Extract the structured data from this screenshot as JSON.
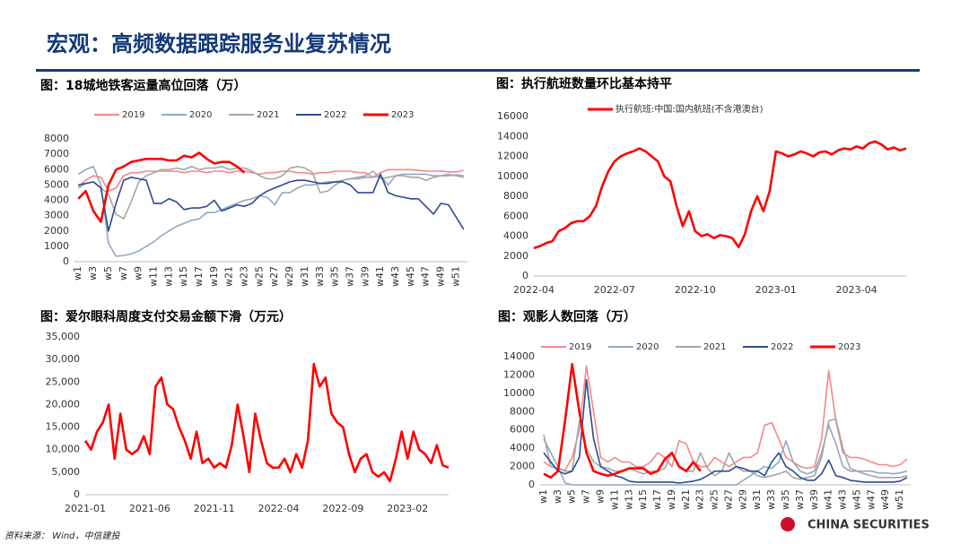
{
  "header": {
    "title": "宏观：高频数据跟踪服务业复苏情况",
    "source": "资料来源： Wind，中信建投",
    "logo": "CHINA SECURITIES"
  },
  "chart_data": [
    {
      "type": "line",
      "title": "图：18城地铁客运量高位回落（万）",
      "categories": [
        "w1",
        null,
        "w3",
        null,
        "w5",
        null,
        "w7",
        null,
        "w9",
        null,
        "w11",
        null,
        "w13",
        null,
        "w15",
        null,
        "w17",
        null,
        "w19",
        null,
        "w21",
        null,
        "w23",
        null,
        "w25",
        null,
        "w27",
        null,
        "w29",
        null,
        "w31",
        null,
        "w33",
        null,
        "w35",
        null,
        "w37",
        null,
        "w39",
        null,
        "w41",
        null,
        "w43",
        null,
        "w45",
        null,
        "w47",
        null,
        "w49",
        null,
        "w51",
        null
      ],
      "ylim": [
        0,
        8000
      ],
      "yticks": [
        0,
        1000,
        2000,
        3000,
        4000,
        5000,
        6000,
        7000,
        8000
      ],
      "grid": false,
      "legend": "top",
      "series": [
        {
          "name": "2019",
          "color": "#f4878a",
          "values": [
            4900,
            5300,
            5600,
            5500,
            4600,
            4800,
            5600,
            5800,
            5800,
            5900,
            5900,
            5900,
            5900,
            5900,
            5800,
            5900,
            5900,
            5800,
            5900,
            5900,
            5800,
            5900,
            5900,
            5800,
            5700,
            5800,
            5800,
            5900,
            5900,
            5800,
            5800,
            5700,
            5800,
            5800,
            5900,
            5900,
            5900,
            5800,
            5800,
            5500,
            5800,
            6000,
            6000,
            6000,
            6000,
            5950,
            5900,
            5900,
            5900,
            5850,
            5850,
            5950
          ]
        },
        {
          "name": "2020",
          "color": "#8fa9c1",
          "values": [
            5700,
            6000,
            6200,
            5000,
            1200,
            350,
            400,
            500,
            700,
            1000,
            1300,
            1700,
            2000,
            2300,
            2500,
            2700,
            2800,
            3200,
            3200,
            3400,
            3600,
            3800,
            4000,
            4100,
            4300,
            4200,
            3700,
            4500,
            4500,
            4800,
            5000,
            5000,
            5100,
            5200,
            5200,
            5300,
            5400,
            5400,
            5500,
            5500,
            5600,
            5000,
            5600,
            5700,
            5700,
            5700,
            5700,
            5600,
            5600,
            5600,
            5650,
            5600
          ]
        },
        {
          "name": "2021",
          "color": "#a6a6a6",
          "values": [
            4800,
            5100,
            5200,
            4800,
            4400,
            3100,
            2800,
            3900,
            5200,
            5600,
            5800,
            6000,
            6000,
            6100,
            6000,
            6200,
            6000,
            6100,
            6100,
            6200,
            6000,
            6100,
            6100,
            5900,
            5600,
            5400,
            5400,
            5600,
            6100,
            6200,
            6100,
            5800,
            4500,
            4600,
            5000,
            5300,
            5400,
            5500,
            5600,
            5900,
            5400,
            5500,
            5600,
            5600,
            5500,
            5500,
            5300,
            5500,
            5600,
            5700,
            5600,
            5500
          ]
        },
        {
          "name": "2022",
          "color": "#2d4b8e",
          "values": [
            5000,
            5100,
            5200,
            4800,
            2000,
            3800,
            5300,
            5500,
            5400,
            5300,
            3800,
            3800,
            4100,
            3900,
            3400,
            3500,
            3500,
            3600,
            4000,
            3300,
            3500,
            3700,
            3600,
            3800,
            4300,
            4600,
            4800,
            5000,
            5200,
            5300,
            5300,
            5200,
            5100,
            5100,
            5200,
            5200,
            5000,
            4500,
            4500,
            4500,
            5700,
            4500,
            4300,
            4200,
            4100,
            4100,
            3600,
            3100,
            3800,
            3700,
            2900,
            2100
          ]
        },
        {
          "name": "2023",
          "color": "#ff0000",
          "values": [
            4100,
            4600,
            3300,
            2600,
            5000,
            6000,
            6200,
            6500,
            6600,
            6700,
            6700,
            6700,
            6600,
            6600,
            6900,
            6800,
            7100,
            6700,
            6400,
            6500,
            6500,
            6200,
            5800,
            null,
            null,
            null,
            null,
            null,
            null,
            null,
            null,
            null,
            null,
            null,
            null,
            null,
            null,
            null,
            null,
            null,
            null,
            null,
            null,
            null,
            null,
            null,
            null,
            null,
            null,
            null,
            null,
            null
          ]
        }
      ]
    },
    {
      "type": "line",
      "title": "图：执行航班数量环比基本持平",
      "categories": [
        "2022-04",
        null,
        null,
        null,
        null,
        null,
        null,
        null,
        null,
        null,
        null,
        null,
        null,
        "2022-07",
        null,
        null,
        null,
        null,
        null,
        null,
        null,
        null,
        null,
        null,
        null,
        null,
        "2022-10",
        null,
        null,
        null,
        null,
        null,
        null,
        null,
        null,
        null,
        null,
        null,
        null,
        "2023-01",
        null,
        null,
        null,
        null,
        null,
        null,
        null,
        null,
        null,
        null,
        null,
        null,
        "2023-04",
        null,
        null,
        null,
        null,
        null,
        null,
        null,
        null
      ],
      "ylim": [
        0,
        16000
      ],
      "yticks": [
        0,
        2000,
        4000,
        6000,
        8000,
        10000,
        12000,
        14000,
        16000
      ],
      "grid": false,
      "legend": "top",
      "series": [
        {
          "name": "执行航班:中国:国内航班(不含港澳台)",
          "color": "#ff0000",
          "values": [
            2800,
            3000,
            3300,
            3500,
            4500,
            4800,
            5300,
            5500,
            5500,
            6000,
            7000,
            9000,
            10500,
            11500,
            12000,
            12300,
            12500,
            12800,
            12500,
            12000,
            11500,
            10000,
            9500,
            7000,
            5000,
            6500,
            4500,
            4000,
            4200,
            3800,
            4100,
            4000,
            3800,
            2900,
            4200,
            6500,
            8000,
            6500,
            8500,
            12500,
            12300,
            12000,
            12200,
            12500,
            12300,
            12000,
            12400,
            12500,
            12200,
            12600,
            12800,
            12700,
            13000,
            12800,
            13300,
            13500,
            13200,
            12700,
            12900,
            12600,
            12800
          ]
        }
      ]
    },
    {
      "type": "line",
      "title": "图：爱尔眼科周度支付交易金额下滑（万元）",
      "categories": [
        "2021-01",
        null,
        null,
        null,
        null,
        null,
        null,
        null,
        null,
        null,
        null,
        "2021-06",
        null,
        null,
        null,
        null,
        null,
        null,
        null,
        null,
        null,
        null,
        "2021-11",
        null,
        null,
        null,
        null,
        null,
        null,
        null,
        null,
        null,
        null,
        "2022-04",
        null,
        null,
        null,
        null,
        null,
        null,
        null,
        null,
        null,
        null,
        "2022-09",
        null,
        null,
        null,
        null,
        null,
        null,
        null,
        null,
        null,
        null,
        "2023-02",
        null,
        null,
        null,
        null,
        null,
        null,
        null
      ],
      "ylim": [
        0,
        35000
      ],
      "yticks": [
        0,
        {
          "value": 5000,
          "label": "5,000"
        },
        {
          "value": 10000,
          "label": "10,000"
        },
        {
          "value": 15000,
          "label": "15,000"
        },
        {
          "value": 20000,
          "label": "20,000"
        },
        {
          "value": 25000,
          "label": "25,000"
        },
        {
          "value": 30000,
          "label": "30,000"
        },
        {
          "value": 35000,
          "label": "35,000"
        }
      ],
      "grid": false,
      "series": [
        {
          "color": "#ff0000",
          "values": [
            12000,
            10000,
            14000,
            16000,
            20000,
            8000,
            18000,
            10000,
            9000,
            10000,
            13000,
            9000,
            24000,
            26000,
            20000,
            19000,
            15000,
            12000,
            8000,
            14000,
            7000,
            8000,
            6000,
            7000,
            6000,
            11000,
            20000,
            13000,
            5000,
            18000,
            12000,
            7000,
            6000,
            6000,
            8000,
            5000,
            9000,
            6000,
            12000,
            29000,
            24000,
            26000,
            18000,
            16000,
            15000,
            9000,
            5000,
            8000,
            9000,
            5000,
            4000,
            5000,
            3000,
            8000,
            14000,
            8000,
            14000,
            10000,
            9000,
            7000,
            11000,
            6500,
            6000
          ]
        }
      ]
    },
    {
      "type": "line",
      "title": "图：观影人数回落（万）",
      "categories": [
        "w1",
        null,
        "w3",
        null,
        "w5",
        null,
        "w7",
        null,
        "w9",
        null,
        "w11",
        null,
        "w13",
        null,
        "w15",
        null,
        "w17",
        null,
        "w19",
        null,
        "w21",
        null,
        "w23",
        null,
        "w25",
        null,
        "w27",
        null,
        "w29",
        null,
        "w31",
        null,
        "w33",
        null,
        "w35",
        null,
        "w37",
        null,
        "w39",
        null,
        "w41",
        null,
        "w43",
        null,
        "w45",
        null,
        "w47",
        null,
        "w49",
        null,
        "w51",
        null
      ],
      "ylim": [
        0,
        14000
      ],
      "yticks": [
        0,
        2000,
        4000,
        6000,
        8000,
        10000,
        12000,
        14000
      ],
      "grid": false,
      "legend": "top",
      "series": [
        {
          "name": "2019",
          "color": "#f4878a",
          "values": [
            2500,
            2000,
            1800,
            1600,
            3000,
            6000,
            13000,
            8000,
            3000,
            2500,
            3000,
            2500,
            2500,
            2000,
            2000,
            2500,
            3500,
            3000,
            2000,
            4800,
            4500,
            2500,
            2000,
            2000,
            3000,
            2500,
            2000,
            2500,
            3000,
            3000,
            3500,
            6500,
            6800,
            5000,
            3000,
            2500,
            2000,
            1800,
            2000,
            5000,
            12500,
            7000,
            3500,
            3000,
            3000,
            2800,
            2500,
            2200,
            2200,
            2000,
            2200,
            2800
          ]
        },
        {
          "name": "2020",
          "color": "#8fa9c1",
          "values": [
            5000,
            3500,
            2000,
            200,
            0,
            0,
            0,
            0,
            0,
            0,
            0,
            0,
            0,
            0,
            0,
            0,
            0,
            0,
            0,
            0,
            0,
            0,
            0,
            0,
            0,
            0,
            0,
            0,
            500,
            1000,
            1500,
            2000,
            1800,
            2500,
            4800,
            2500,
            1500,
            1200,
            1500,
            3500,
            6500,
            4500,
            2000,
            1500,
            1500,
            1500,
            1500,
            1300,
            1300,
            1200,
            1300,
            1500
          ]
        },
        {
          "name": "2021",
          "color": "#a6a6a6",
          "values": [
            5500,
            2000,
            1800,
            1500,
            1500,
            7000,
            4000,
            2500,
            2000,
            1800,
            1500,
            1500,
            1800,
            1500,
            1200,
            1500,
            1500,
            1800,
            3500,
            2000,
            1500,
            1500,
            3500,
            1800,
            1000,
            1500,
            3500,
            2000,
            1500,
            1500,
            1000,
            800,
            1000,
            1200,
            1500,
            800,
            600,
            800,
            1000,
            3000,
            7000,
            7200,
            4000,
            1800,
            1500,
            1200,
            1000,
            800,
            800,
            800,
            800,
            1000
          ]
        },
        {
          "name": "2022",
          "color": "#2d4b8e",
          "values": [
            3500,
            2500,
            1500,
            1200,
            1500,
            3000,
            11500,
            5000,
            2000,
            1500,
            1000,
            800,
            400,
            300,
            300,
            300,
            300,
            300,
            300,
            200,
            300,
            400,
            600,
            1000,
            1500,
            1500,
            1500,
            2000,
            1800,
            1500,
            1500,
            1000,
            2500,
            3500,
            2000,
            1500,
            800,
            500,
            500,
            1200,
            2700,
            1000,
            800,
            500,
            400,
            300,
            300,
            300,
            300,
            300,
            400,
            800
          ]
        },
        {
          "name": "2023",
          "color": "#ff0000",
          "values": [
            1200,
            800,
            1500,
            7000,
            13200,
            8000,
            3500,
            1500,
            1200,
            1000,
            1200,
            1500,
            1800,
            1800,
            1800,
            1200,
            1500,
            2800,
            3500,
            2000,
            1500,
            2500,
            1500,
            null,
            null,
            null,
            null,
            null,
            null,
            null,
            null,
            null,
            null,
            null,
            null,
            null,
            null,
            null,
            null,
            null,
            null,
            null,
            null,
            null,
            null,
            null,
            null,
            null,
            null,
            null,
            null,
            null
          ]
        }
      ]
    }
  ]
}
